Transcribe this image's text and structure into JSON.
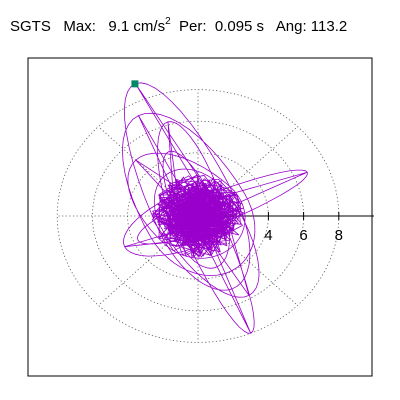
{
  "header": {
    "name": "SGTS",
    "max_label": "Max:",
    "max_value": "9.1 cm/s",
    "max_exp": "2",
    "per_label": "Per:",
    "per_value": "0.095 s",
    "ang_label": "Ang:",
    "ang_value": "113.2"
  },
  "colors": {
    "trace": "#9900cc",
    "marker": "#008866",
    "grid": "#555555",
    "frame": "#000000"
  },
  "chart_data": {
    "type": "polar-trace",
    "title": "SGTS   Max:   9.1 cm/s2  Per:  0.095 s   Ang: 113.2",
    "radial_ticks": [
      "4",
      "6",
      "8"
    ],
    "radial_max": 10,
    "rings": [
      2,
      4,
      6,
      8
    ],
    "spokes_deg": [
      0,
      45,
      90,
      135,
      180,
      225,
      270,
      315
    ],
    "peak": {
      "magnitude": 9.1,
      "angle_deg": 113.2,
      "unit": "cm/s2"
    },
    "grid": true
  }
}
